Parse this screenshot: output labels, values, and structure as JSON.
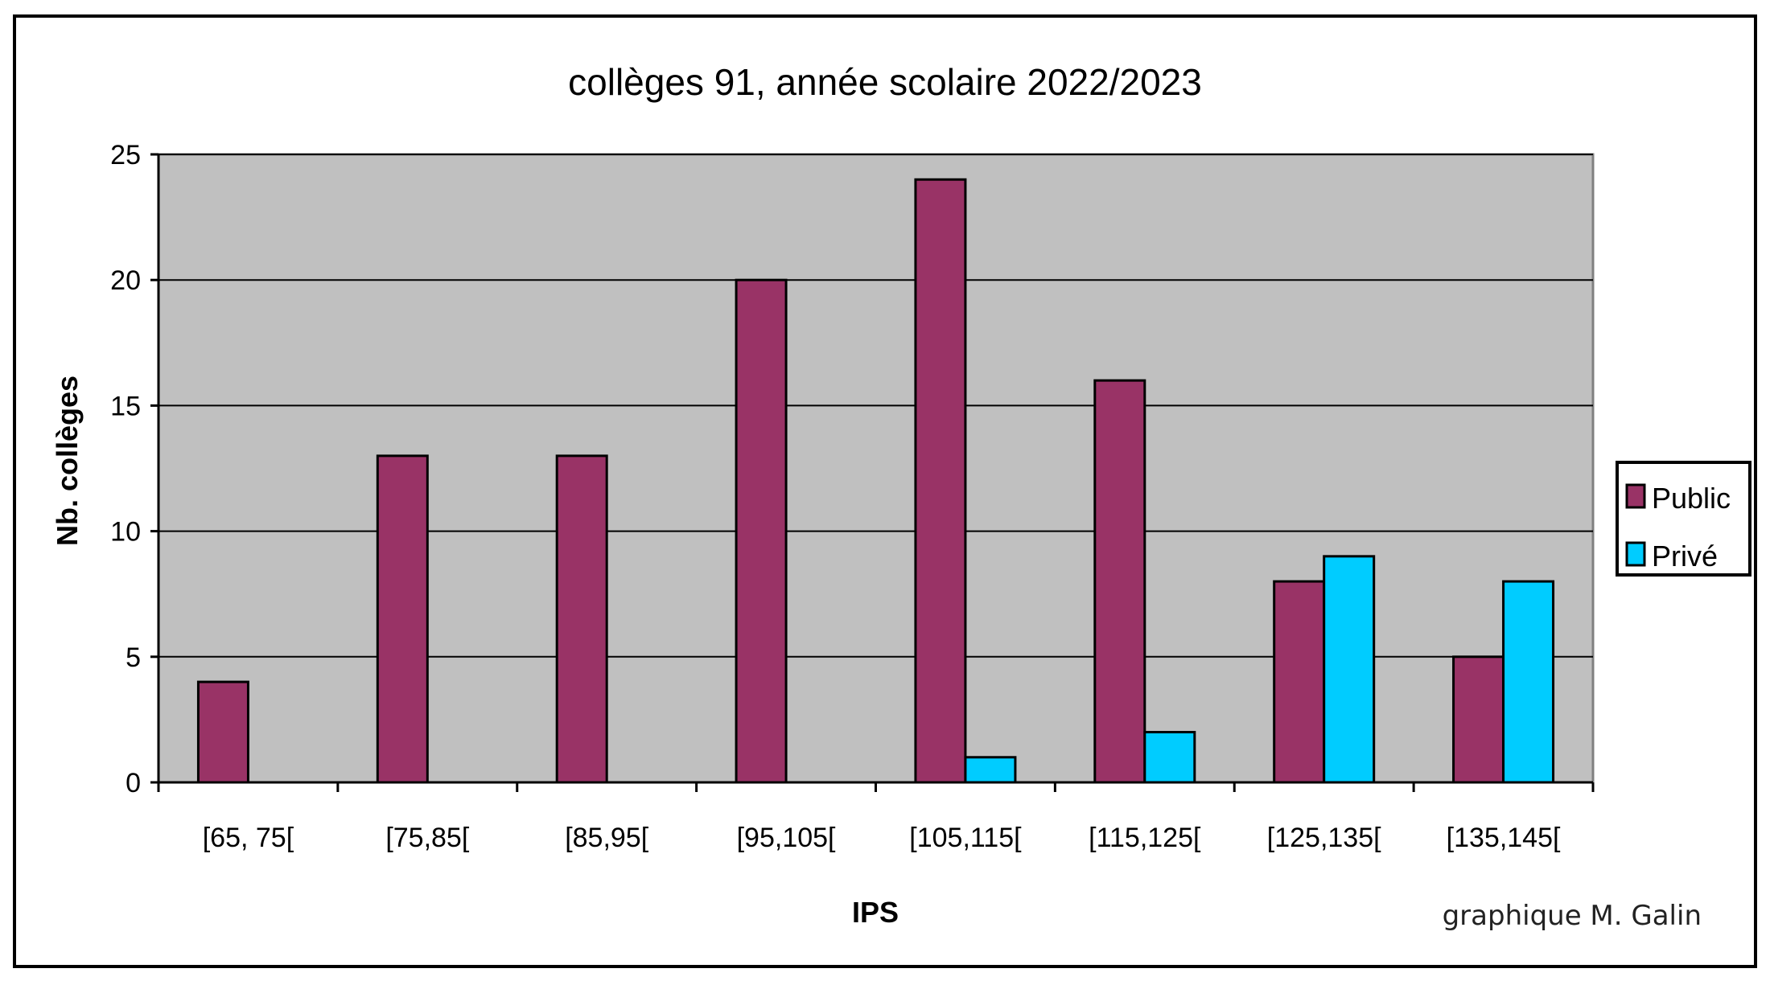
{
  "chart_data": {
    "type": "bar",
    "title": "collèges 91, année scolaire 2022/2023",
    "xlabel": "IPS",
    "ylabel": "Nb. collèges",
    "credit": "graphique M. Galin",
    "categories": [
      "[65, 75[",
      "[75,85[",
      "[85,95[",
      "[95,105[",
      "[105,115[",
      "[115,125[",
      "[125,135[",
      "[135,145["
    ],
    "series": [
      {
        "name": "Public",
        "color": "#993366",
        "values": [
          4,
          13,
          13,
          20,
          24,
          16,
          8,
          5
        ]
      },
      {
        "name": "Privé",
        "color": "#00ccff",
        "values": [
          0,
          0,
          0,
          0,
          1,
          2,
          9,
          8
        ]
      }
    ],
    "ylim": [
      0,
      25
    ],
    "yticks": [
      0,
      5,
      10,
      15,
      20,
      25
    ],
    "grid": true,
    "plot_background": "#c0c0c0",
    "legend_position": "right"
  }
}
